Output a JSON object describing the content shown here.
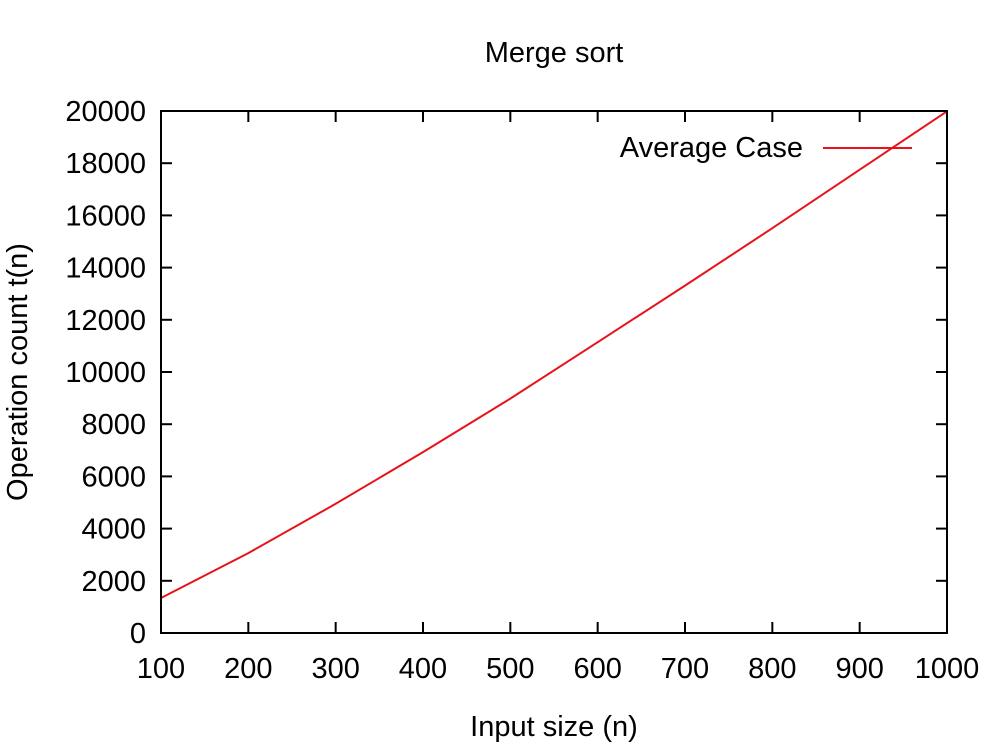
{
  "chart_data": {
    "type": "line",
    "title": "Merge sort",
    "xlabel": "Input size (n)",
    "ylabel": "Operation count t(n)",
    "xlim": [
      100,
      1000
    ],
    "ylim": [
      0,
      20000
    ],
    "xticks": [
      100,
      200,
      300,
      400,
      500,
      600,
      700,
      800,
      900,
      1000
    ],
    "yticks": [
      0,
      2000,
      4000,
      6000,
      8000,
      10000,
      12000,
      14000,
      16000,
      18000,
      20000
    ],
    "grid": false,
    "legend": "top-right",
    "series": [
      {
        "name": "Average Case",
        "color": "#e8121b",
        "x": [
          100,
          200,
          300,
          400,
          500,
          600,
          700,
          800,
          900,
          1000
        ],
        "y": [
          1340,
          3060,
          4950,
          6930,
          8980,
          11140,
          13310,
          15510,
          17750,
          19990
        ]
      }
    ]
  }
}
